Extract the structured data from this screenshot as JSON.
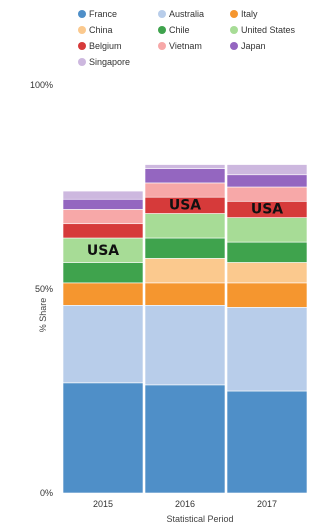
{
  "chart_data": {
    "type": "bar",
    "stacked": true,
    "categories": [
      "2015",
      "2016",
      "2017"
    ],
    "xlabel": "Statistical Period",
    "ylabel": "% Share",
    "ylim": [
      0,
      100
    ],
    "y_ticks": [
      {
        "value": 0,
        "label": "0%"
      },
      {
        "value": 50,
        "label": "50%"
      },
      {
        "value": 100,
        "label": "100%"
      }
    ],
    "legend_position": "top",
    "series": [
      {
        "name": "France",
        "color": "#4f8fc8",
        "values": [
          27,
          26.5,
          25
        ]
      },
      {
        "name": "Australia",
        "color": "#b8cdea",
        "values": [
          19,
          19.5,
          20.5
        ]
      },
      {
        "name": "Italy",
        "color": "#f5962f",
        "values": [
          5.5,
          5.5,
          6
        ]
      },
      {
        "name": "China",
        "color": "#fbc98e",
        "values": [
          0,
          6,
          5
        ]
      },
      {
        "name": "Chile",
        "color": "#3fa34d",
        "values": [
          5,
          5,
          5
        ]
      },
      {
        "name": "United States",
        "color": "#a7dc96",
        "values": [
          6,
          6,
          6
        ]
      },
      {
        "name": "Belgium",
        "color": "#d63a3a",
        "values": [
          3.5,
          4,
          4
        ]
      },
      {
        "name": "Vietnam",
        "color": "#f7a8a8",
        "values": [
          3.5,
          3.5,
          3.5
        ]
      },
      {
        "name": "Japan",
        "color": "#9466c0",
        "values": [
          2.5,
          3.5,
          3
        ]
      },
      {
        "name": "Singapore",
        "color": "#cdb8df",
        "values": [
          2,
          1,
          2.5
        ]
      }
    ],
    "annotations": [
      {
        "category": "2015",
        "series": "United States",
        "text": "USA"
      },
      {
        "category": "2016",
        "series": "United States",
        "text": "USA"
      },
      {
        "category": "2017",
        "series": "United States",
        "text": "USA"
      }
    ]
  }
}
